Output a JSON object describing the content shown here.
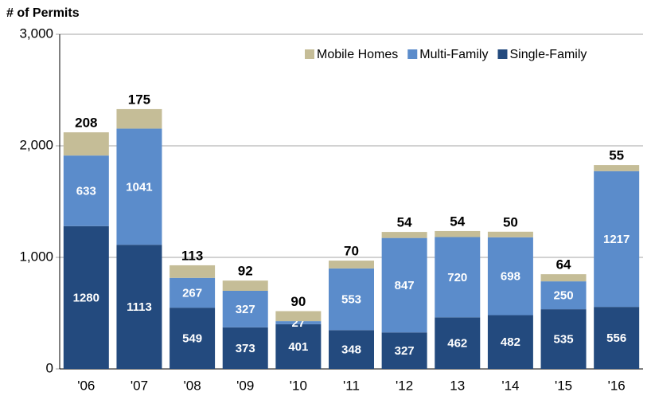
{
  "chart_data": {
    "type": "stacked_bar",
    "title": "# of Permits",
    "categories": [
      "'06",
      "'07",
      "'08",
      "'09",
      "'10",
      "'11",
      "'12",
      "13",
      "'14",
      "'15",
      "'16"
    ],
    "series": [
      {
        "name": "Single-Family",
        "color": "#234a7e",
        "values": [
          1280,
          1113,
          549,
          373,
          401,
          348,
          327,
          462,
          482,
          535,
          556
        ]
      },
      {
        "name": "Multi-Family",
        "color": "#5b8ccb",
        "values": [
          633,
          1041,
          267,
          327,
          27,
          553,
          847,
          720,
          698,
          250,
          1217
        ]
      },
      {
        "name": "Mobile Homes",
        "color": "#c5bd97",
        "values": [
          208,
          175,
          113,
          92,
          90,
          70,
          54,
          54,
          50,
          64,
          55
        ]
      }
    ],
    "ylim": [
      0,
      3000
    ],
    "yticks": [
      0,
      {
        "value": 1000,
        "label": "1,000"
      },
      {
        "value": 2000,
        "label": "2,000"
      },
      {
        "value": 3000,
        "label": "3,000"
      }
    ],
    "grid": true,
    "legend": "top-right"
  }
}
